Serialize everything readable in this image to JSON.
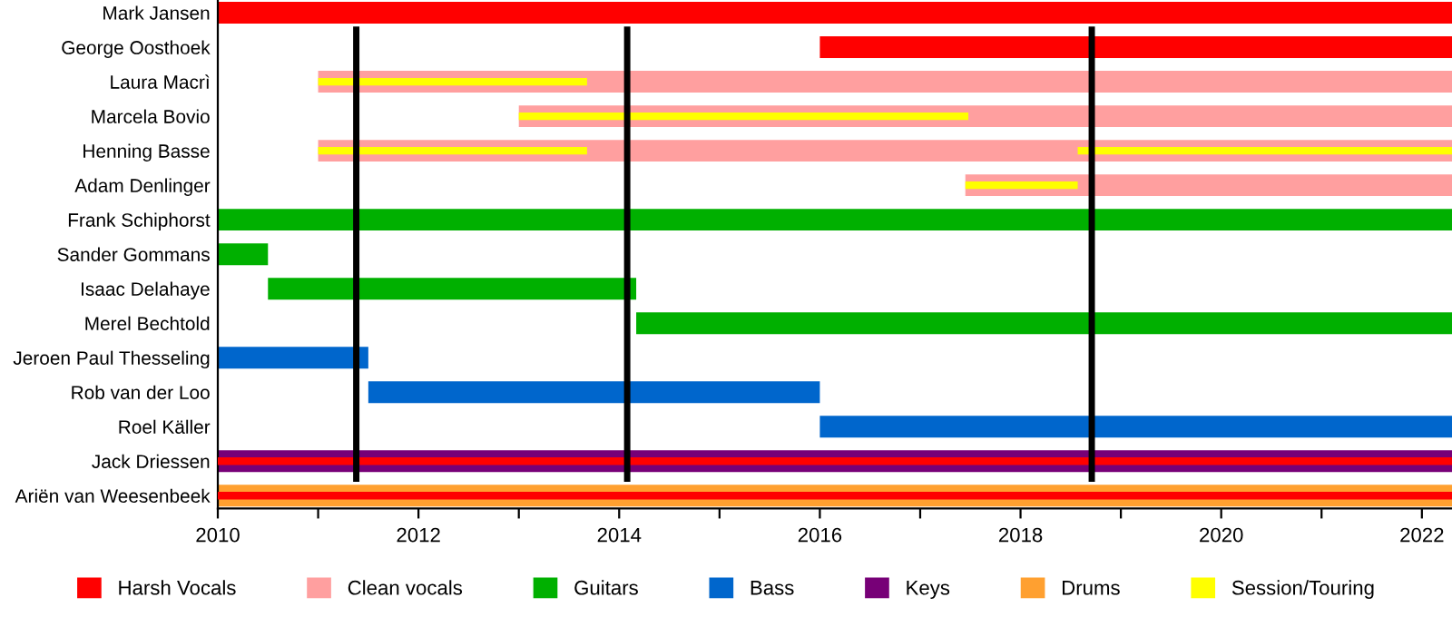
{
  "chart_data": {
    "type": "bar",
    "orientation": "horizontal",
    "categories": [
      "Mark Jansen",
      "George Oosthoek",
      "Laura Macrì",
      "Marcela Bovio",
      "Henning Basse",
      "Adam Denlinger",
      "Frank Schiphorst",
      "Sander Gommans",
      "Isaac Delahaye",
      "Merel Bechtold",
      "Jeroen Paul Thesseling",
      "Rob van der Loo",
      "Roel Käller",
      "Jack Driessen",
      "Ariën van Weesenbeek"
    ],
    "series": [
      {
        "name": "Harsh Vocals",
        "color": "#ff0000",
        "base": [
          2010,
          2016,
          null,
          null,
          null,
          null,
          null,
          null,
          null,
          null,
          null,
          null,
          null,
          null,
          null
        ],
        "values": [
          12.3,
          6.3,
          null,
          null,
          null,
          null,
          null,
          null,
          null,
          null,
          null,
          null,
          null,
          null,
          null
        ]
      },
      {
        "name": "Clean vocals",
        "color": "#ff9f9f",
        "base": [
          null,
          null,
          2011,
          2013,
          2011,
          2017.45,
          null,
          null,
          null,
          null,
          null,
          null,
          null,
          null,
          null
        ],
        "values": [
          null,
          null,
          11.3,
          9.3,
          11.3,
          4.85,
          null,
          null,
          null,
          null,
          null,
          null,
          null,
          null,
          null
        ]
      },
      {
        "name": "Guitars",
        "color": "#00b000",
        "base": [
          null,
          null,
          null,
          null,
          null,
          null,
          2010,
          2010,
          2010.5,
          2014.17,
          null,
          null,
          null,
          null,
          null
        ],
        "values": [
          null,
          null,
          null,
          null,
          null,
          null,
          12.3,
          0.5,
          3.67,
          8.13,
          null,
          null,
          null,
          null,
          null
        ]
      },
      {
        "name": "Bass",
        "color": "#0066cc",
        "base": [
          null,
          null,
          null,
          null,
          null,
          null,
          null,
          null,
          null,
          null,
          2010,
          2011.5,
          2016,
          null,
          null
        ],
        "values": [
          null,
          null,
          null,
          null,
          null,
          null,
          null,
          null,
          null,
          null,
          1.5,
          4.5,
          6.3,
          null,
          null
        ]
      },
      {
        "name": "Keys",
        "color": "#770077",
        "base": [
          null,
          null,
          null,
          null,
          null,
          null,
          null,
          null,
          null,
          null,
          null,
          null,
          null,
          2010,
          null
        ],
        "values": [
          null,
          null,
          null,
          null,
          null,
          null,
          null,
          null,
          null,
          null,
          null,
          null,
          null,
          12.3,
          null
        ]
      },
      {
        "name": "Drums",
        "color": "#ffa030",
        "base": [
          null,
          null,
          null,
          null,
          null,
          null,
          null,
          null,
          null,
          null,
          null,
          null,
          null,
          null,
          2010
        ],
        "values": [
          null,
          null,
          null,
          null,
          null,
          null,
          null,
          null,
          null,
          null,
          null,
          null,
          null,
          null,
          12.3
        ]
      },
      {
        "name": "Session/Touring",
        "color": "#ffff00",
        "base": [
          null,
          null,
          2011,
          2013,
          2011,
          2017.45,
          null,
          null,
          null,
          null,
          null,
          null,
          null,
          null,
          null
        ],
        "values": [
          null,
          null,
          2.68,
          4.48,
          2.68,
          1.12,
          null,
          null,
          null,
          null,
          null,
          null,
          null,
          null,
          null
        ]
      },
      {
        "color": "#ffff00",
        "base": [
          null,
          null,
          null,
          null,
          2018.57,
          null,
          null,
          null,
          null,
          null,
          null,
          null,
          null,
          null,
          null
        ],
        "values": [
          null,
          null,
          null,
          null,
          3.73,
          null,
          null,
          null,
          null,
          null,
          null,
          null,
          null,
          null,
          null
        ]
      },
      {
        "color": "#ff0000",
        "base": [
          null,
          null,
          null,
          null,
          null,
          null,
          null,
          null,
          null,
          null,
          null,
          null,
          null,
          2010,
          2010
        ],
        "values": [
          null,
          null,
          null,
          null,
          null,
          null,
          null,
          null,
          null,
          null,
          null,
          null,
          null,
          12.3,
          12.3
        ]
      }
    ],
    "xlim": [
      2010,
      2022.3
    ],
    "xticks": [
      2010,
      {
        "value": 2011,
        "label": null
      },
      2012,
      {
        "value": 2013,
        "label": null
      },
      2014,
      {
        "value": 2015,
        "label": null
      },
      2016,
      {
        "value": 2017,
        "label": null
      },
      2018,
      {
        "value": 2019,
        "label": null
      },
      2020,
      {
        "value": 2021,
        "label": null
      },
      2022
    ],
    "ref_lines": [
      {
        "axis": "x",
        "value": 2011.38,
        "color": "#000000"
      },
      {
        "axis": "x",
        "value": 2014.08,
        "color": "#000000"
      },
      {
        "axis": "x",
        "value": 2018.71,
        "color": "#000000"
      }
    ],
    "legend": "bottom",
    "grid": false
  }
}
